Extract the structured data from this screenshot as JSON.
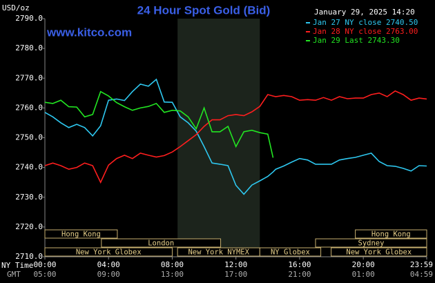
{
  "chart_data": {
    "type": "line",
    "title": "24 Hour Spot Gold (Bid)",
    "timestamp": "January 29, 2025 14:20",
    "y_label": "USD/oz",
    "watermark": "www.kitco.com",
    "x_row_labels": [
      "NY Time",
      "GMT"
    ],
    "x": [
      0,
      0.5,
      1,
      1.5,
      2,
      2.5,
      3,
      3.5,
      4,
      4.5,
      5,
      5.5,
      6,
      6.5,
      7,
      7.5,
      8,
      8.5,
      9,
      9.5,
      10,
      10.5,
      11,
      11.5,
      12,
      12.5,
      13,
      13.5,
      14,
      14.333,
      14.5,
      15,
      15.5,
      16,
      16.5,
      17,
      17.5,
      18,
      18.5,
      19,
      19.5,
      20,
      20.5,
      21,
      21.5,
      22,
      22.5,
      23,
      23.5,
      23.983
    ],
    "series": [
      {
        "name": "Jan 27 NY close 2740.50",
        "color": "#2ec8f0",
        "values": [
          2758.5,
          2757,
          2755,
          2753.4,
          2754.5,
          2753.4,
          2750.6,
          2754,
          2762.6,
          2763,
          2762.5,
          2765.5,
          2768,
          2767.3,
          2769.6,
          2762,
          2761.9,
          2757,
          2755,
          2752.2,
          2747,
          2741.5,
          2741.1,
          2740.6,
          2734,
          2731,
          2734.1,
          2735.5,
          2737,
          2738.5,
          2739.4,
          2740.5,
          2741.8,
          2743,
          2742.5,
          2741.1,
          2741.1,
          2741.1,
          2742.5,
          2743,
          2743.4,
          2744.1,
          2744.8,
          2742,
          2740.6,
          2740.4,
          2739.7,
          2738.8,
          2740.6,
          2740.5
        ]
      },
      {
        "name": "Jan 28 NY close 2763.00",
        "color": "#ff1e1e",
        "values": [
          2740.6,
          2741.5,
          2740.6,
          2739.4,
          2740,
          2741.5,
          2740.6,
          2735,
          2740.8,
          2743,
          2744.1,
          2743,
          2744.8,
          2744.1,
          2743.5,
          2744,
          2745.2,
          2747,
          2749,
          2751,
          2753.8,
          2756,
          2756,
          2757.4,
          2757.8,
          2757.4,
          2758.7,
          2760.5,
          2764.5,
          2764,
          2763.8,
          2764.2,
          2763.8,
          2762.6,
          2762.8,
          2762.6,
          2763.5,
          2762.6,
          2763.8,
          2763.1,
          2763.3,
          2763.3,
          2764.5,
          2765,
          2763.8,
          2765.7,
          2764.5,
          2762.6,
          2763.3,
          2763
        ]
      },
      {
        "name": "Jan 29 Last 2743.30",
        "color": "#22e622",
        "values": [
          2761.9,
          2761.5,
          2762.6,
          2760.4,
          2760.3,
          2757,
          2757.8,
          2765.5,
          2764,
          2761.8,
          2760.4,
          2759.2,
          2760,
          2760.5,
          2761.5,
          2758.5,
          2759.2,
          2759,
          2757,
          2753,
          2760,
          2752,
          2752,
          2753.8,
          2747,
          2752,
          2752.5,
          2751.7,
          2751.2,
          2743.3,
          null,
          null,
          null,
          null,
          null,
          null,
          null,
          null,
          null,
          null,
          null,
          null,
          null,
          null,
          null,
          null,
          null,
          null,
          null,
          null
        ]
      }
    ],
    "xlim": [
      0,
      23.983
    ],
    "xticks": [
      {
        "value": 0,
        "label": "00:00"
      },
      {
        "value": 4,
        "label": "04:00"
      },
      {
        "value": 8,
        "label": "08:00"
      },
      {
        "value": 12,
        "label": "12:00"
      },
      {
        "value": 16,
        "label": "16:00"
      },
      {
        "value": 20,
        "label": "20:00"
      },
      {
        "value": 23.983,
        "label": "23:59"
      }
    ],
    "x_gmt_labels": [
      "05:00",
      "09:00",
      "13:00",
      "17:00",
      "21:00",
      "01:00",
      "04:59"
    ],
    "ylim": [
      2710,
      2790
    ],
    "yticks": [
      {
        "value": 2790,
        "label": "2790.0"
      },
      {
        "value": 2780,
        "label": "2780.0"
      },
      {
        "value": 2770,
        "label": "2770.0"
      },
      {
        "value": 2760,
        "label": "2760.0"
      },
      {
        "value": 2750,
        "label": "2750.0"
      },
      {
        "value": 2740,
        "label": "2740.0"
      },
      {
        "value": 2730,
        "label": "2730.0"
      },
      {
        "value": 2720,
        "label": "2720.0"
      },
      {
        "value": 2710,
        "label": "2710.0"
      }
    ],
    "grid": false,
    "shade": [
      8.333,
      13.5
    ],
    "sessions": [
      [
        {
          "label": "Hong Kong",
          "start": 0,
          "end": 4.55
        },
        {
          "label": "Hong Kong",
          "start": 19.5,
          "end": 23.983
        }
      ],
      [
        {
          "label": "London",
          "start": 3.55,
          "end": 11.04
        },
        {
          "label": "Sydney",
          "start": 17,
          "end": 23.983
        }
      ],
      [
        {
          "label": "New York Globex",
          "start": 0,
          "end": 8
        },
        {
          "label": "New York NYMEX",
          "start": 8.333,
          "end": 13.5
        },
        {
          "label": "NY Globex",
          "start": 13.5,
          "end": 17.33
        },
        {
          "label": "New York Globex",
          "start": 17.98,
          "end": 23.983
        }
      ]
    ]
  }
}
